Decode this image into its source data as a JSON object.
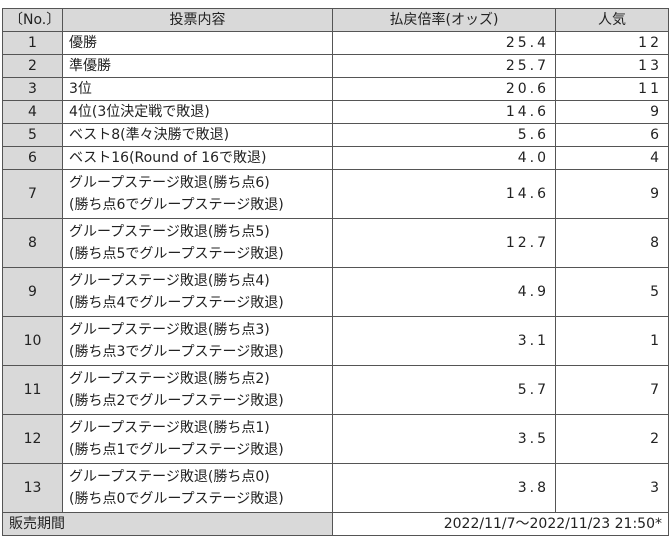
{
  "table": {
    "header": [
      "〔No.〕",
      "投票内容",
      "払戻倍率(オッズ)",
      "人気"
    ],
    "rows": [
      {
        "no": "1",
        "content": [
          "優勝"
        ],
        "odds": "25.4",
        "rank": "12"
      },
      {
        "no": "2",
        "content": [
          "準優勝"
        ],
        "odds": "25.7",
        "rank": "13"
      },
      {
        "no": "3",
        "content": [
          "3位"
        ],
        "odds": "20.6",
        "rank": "11"
      },
      {
        "no": "4",
        "content": [
          "4位(3位決定戦で敗退)"
        ],
        "odds": "14.6",
        "rank": "9"
      },
      {
        "no": "5",
        "content": [
          "ベスト8(準々決勝で敗退)"
        ],
        "odds": "5.6",
        "rank": "6"
      },
      {
        "no": "6",
        "content": [
          "ベスト16(Round of 16で敗退)"
        ],
        "odds": "4.0",
        "rank": "4"
      },
      {
        "no": "7",
        "content": [
          "グループステージ敗退(勝ち点6)",
          "(勝ち点6でグループステージ敗退)"
        ],
        "odds": "14.6",
        "rank": "9"
      },
      {
        "no": "8",
        "content": [
          "グループステージ敗退(勝ち点5)",
          "(勝ち点5でグループステージ敗退)"
        ],
        "odds": "12.7",
        "rank": "8"
      },
      {
        "no": "9",
        "content": [
          "グループステージ敗退(勝ち点4)",
          "(勝ち点4でグループステージ敗退)"
        ],
        "odds": "4.9",
        "rank": "5"
      },
      {
        "no": "10",
        "content": [
          "グループステージ敗退(勝ち点3)",
          "(勝ち点3でグループステージ敗退)"
        ],
        "odds": "3.1",
        "rank": "1"
      },
      {
        "no": "11",
        "content": [
          "グループステージ敗退(勝ち点2)",
          "(勝ち点2でグループステージ敗退)"
        ],
        "odds": "5.7",
        "rank": "7"
      },
      {
        "no": "12",
        "content": [
          "グループステージ敗退(勝ち点1)",
          "(勝ち点1でグループステージ敗退)"
        ],
        "odds": "3.5",
        "rank": "2"
      },
      {
        "no": "13",
        "content": [
          "グループステージ敗退(勝ち点0)",
          "(勝ち点0でグループステージ敗退)"
        ],
        "odds": "3.8",
        "rank": "3"
      }
    ],
    "footer": {
      "label": "販売期間",
      "value": "2022/11/7～2022/11/23 21:50*"
    }
  }
}
